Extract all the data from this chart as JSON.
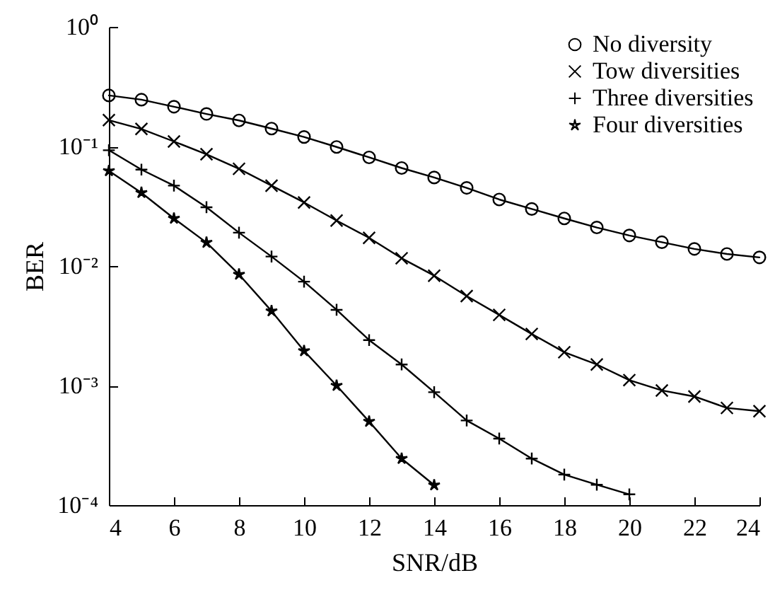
{
  "chart_data": {
    "type": "line",
    "xlabel": "SNR/dB",
    "ylabel": "BER",
    "log": "y",
    "legend": "top right",
    "grid": false,
    "xlim": [
      4,
      24
    ],
    "xticks": [
      4,
      6,
      8,
      10,
      12,
      14,
      16,
      18,
      20,
      22,
      24
    ],
    "ylim": [
      0.0001,
      1
    ],
    "yticks": [
      {
        "value": 0.0001,
        "label": "10⁻⁴"
      },
      {
        "value": 0.001,
        "label": "10⁻³"
      },
      {
        "value": 0.01,
        "label": "10⁻²"
      },
      {
        "value": 0.1,
        "label": "10⁻¹"
      },
      {
        "value": 1,
        "label": "10⁰"
      }
    ],
    "series": [
      {
        "name": "No diversity",
        "color": "#000000",
        "marker": "circle",
        "x": [
          4,
          5,
          6,
          7,
          8,
          9,
          10,
          11,
          12,
          13,
          14,
          15,
          16,
          17,
          18,
          19,
          20,
          21,
          22,
          23,
          24
        ],
        "values": [
          0.267,
          0.246,
          0.215,
          0.187,
          0.165,
          0.141,
          0.12,
          0.099,
          0.081,
          0.066,
          0.055,
          0.045,
          0.036,
          0.03,
          0.025,
          0.021,
          0.018,
          0.0158,
          0.0139,
          0.0126,
          0.0118
        ]
      },
      {
        "name": "Tow diversities",
        "color": "#000000",
        "marker": "x",
        "x": [
          4,
          5,
          6,
          7,
          8,
          9,
          10,
          11,
          12,
          13,
          14,
          15,
          16,
          17,
          18,
          19,
          20,
          21,
          22,
          23,
          24
        ],
        "values": [
          0.166,
          0.14,
          0.11,
          0.086,
          0.065,
          0.047,
          0.034,
          0.024,
          0.0172,
          0.0116,
          0.0083,
          0.0056,
          0.0039,
          0.0027,
          0.0019,
          0.0015,
          0.00111,
          0.00091,
          0.00081,
          0.00065,
          0.00061
        ]
      },
      {
        "name": "Three diversities",
        "color": "#000000",
        "marker": "cross",
        "x": [
          4,
          5,
          6,
          7,
          8,
          9,
          10,
          11,
          12,
          13,
          14,
          15,
          16,
          17,
          18,
          19,
          20
        ],
        "values": [
          0.093,
          0.064,
          0.047,
          0.031,
          0.019,
          0.012,
          0.0074,
          0.0043,
          0.0024,
          0.0015,
          0.00088,
          0.00051,
          0.00036,
          0.000245,
          0.00018,
          0.000148,
          0.000123
        ]
      },
      {
        "name": "Four diversities",
        "color": "#000000",
        "marker": "star",
        "x": [
          4,
          5,
          6,
          7,
          8,
          9,
          10,
          11,
          12,
          13,
          14
        ],
        "values": [
          0.0625,
          0.041,
          0.025,
          0.0157,
          0.0085,
          0.0042,
          0.00195,
          0.001,
          0.0005,
          0.000245,
          0.000147
        ]
      }
    ]
  }
}
